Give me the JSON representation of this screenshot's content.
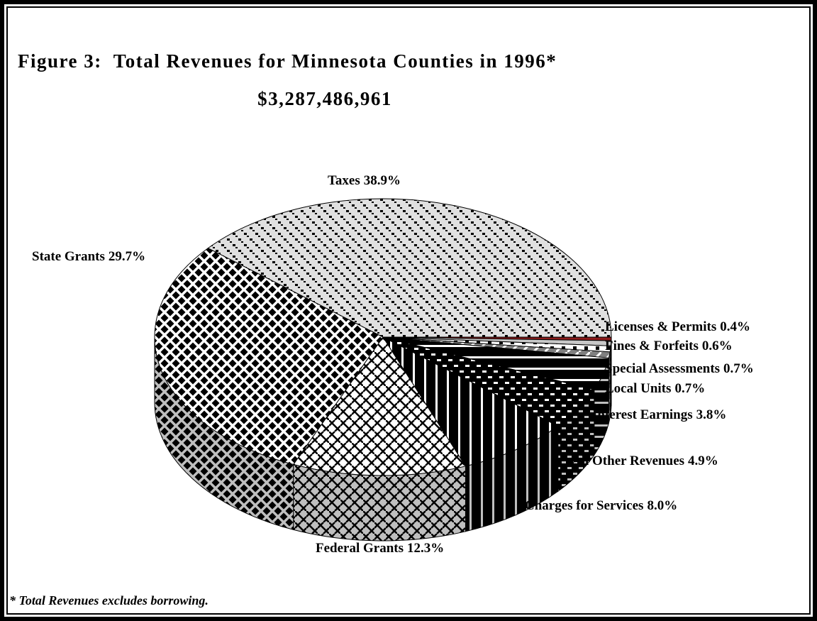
{
  "chart_data": {
    "type": "pie",
    "title": "Figure 3:  Total Revenues for Minnesota Counties in 1996*",
    "subtitle": "$3,287,486,961",
    "footnote": "* Total Revenues excludes borrowing.",
    "categories": [
      "Taxes",
      "Licenses & Permits",
      "Fines & Forfeits",
      "Special Assessments",
      "Local Units",
      "Interest Earnings",
      "All Other Revenues",
      "Charges for Services",
      "Federal Grants",
      "State Grants"
    ],
    "values": [
      38.9,
      0.4,
      0.6,
      0.7,
      0.7,
      3.8,
      4.9,
      8.0,
      12.3,
      29.7
    ],
    "value_labels": [
      "38.9%",
      "0.4%",
      "0.6%",
      "0.7%",
      "0.7%",
      "3.8%",
      "4.9%",
      "8.0%",
      "12.3%",
      "29.7%"
    ],
    "colors": [
      "#e0e0e0",
      "#8b1a1a",
      "#c8c8c8",
      "#ffffff",
      "#808080",
      "#000000",
      "#000000",
      "#000000",
      "#ffffff",
      "#000000"
    ]
  }
}
